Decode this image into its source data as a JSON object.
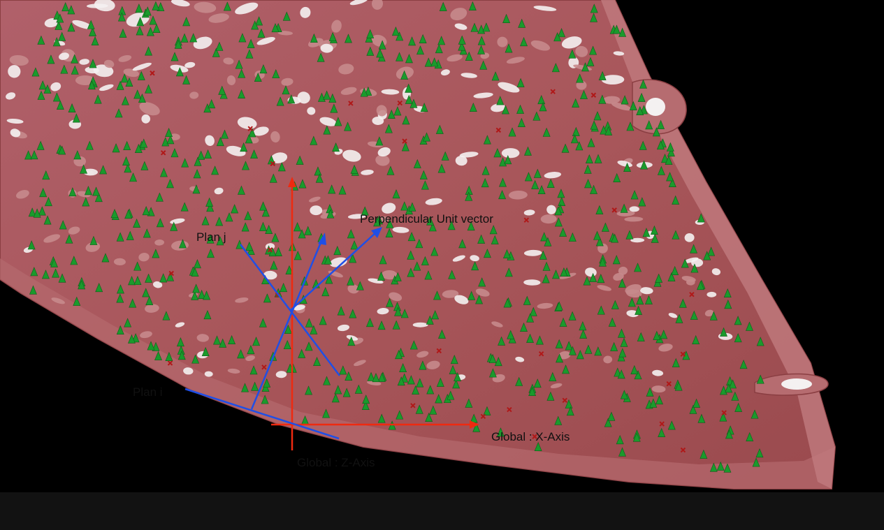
{
  "labels": {
    "plan_j": "Plan j",
    "plan_i": "Plan i",
    "perpendicular": "Perpendicular Unit vector",
    "global_x": "Global : X-Axis",
    "global_z": "Global : Z-Axis"
  },
  "colors": {
    "background": "#000000",
    "surface": "#a8565a",
    "surface_light": "#c98488",
    "hole": "#f4f1f1",
    "tree_marker": "#1a9a2c",
    "cross_marker": "#b01818",
    "global_axes": "#ee2a10",
    "local_vectors": "#1f4fe6",
    "bottom_bar": "#121212"
  },
  "markers": {
    "tree_icon": "tree-icon",
    "cross_icon": "cross-icon"
  }
}
